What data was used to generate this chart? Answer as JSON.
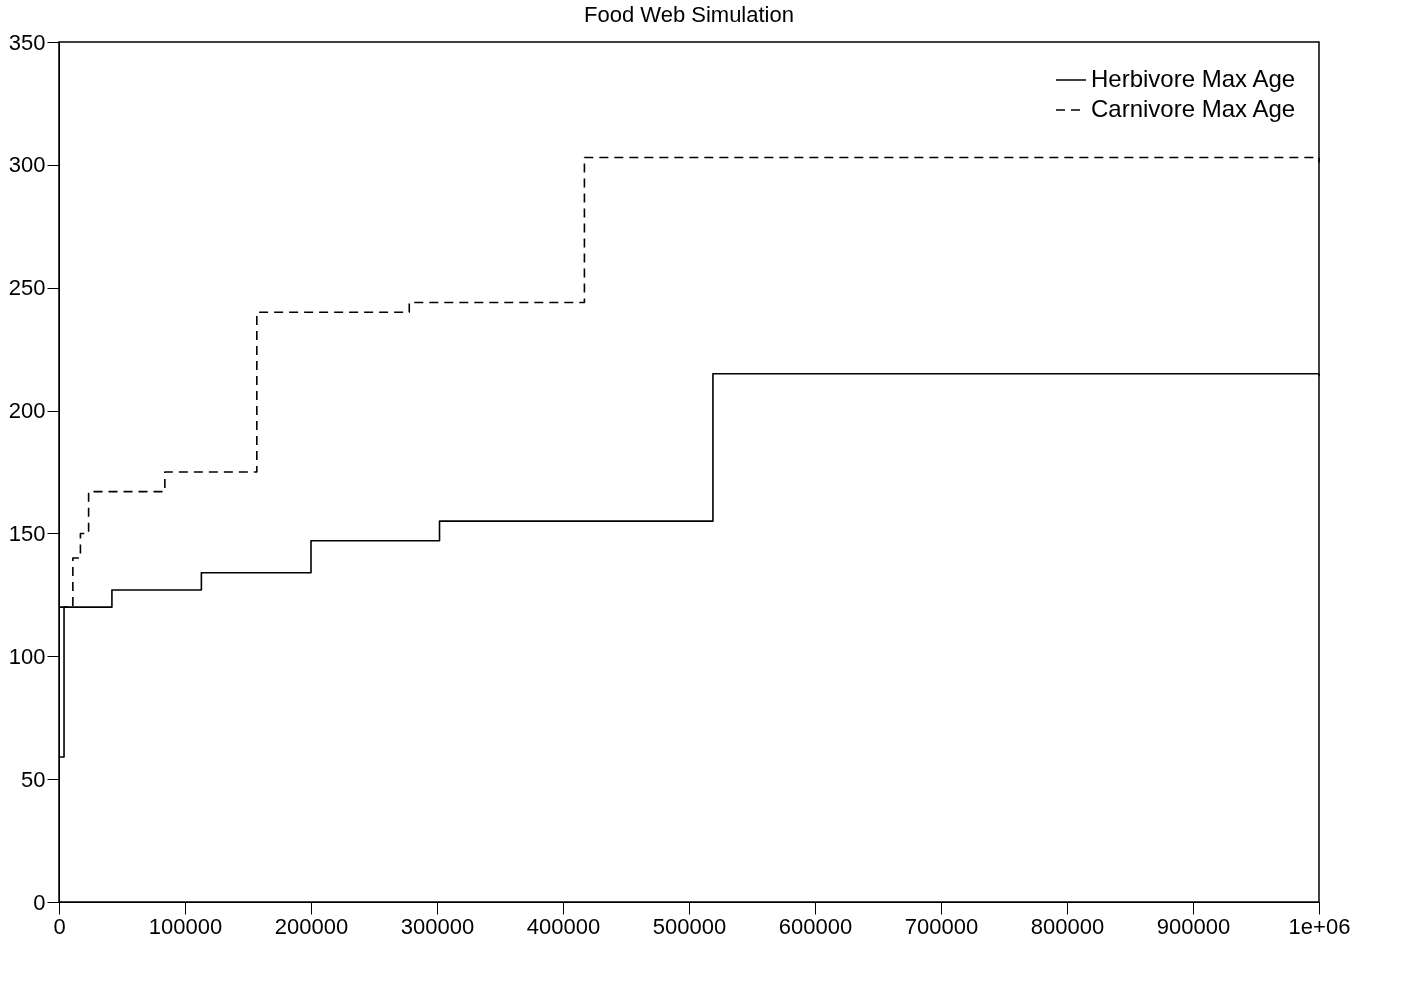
{
  "chart_data": {
    "type": "step",
    "title": "Food Web Simulation",
    "series": [
      {
        "name": "Herbivore Max Age",
        "color": "#000000",
        "line_style": "solid",
        "x": [
          0,
          4000,
          42000,
          113000,
          200000,
          302000,
          519000,
          1000000
        ],
        "values": [
          59,
          120,
          127,
          134,
          147,
          155,
          215,
          214
        ]
      },
      {
        "name": "Carnivore Max Age",
        "color": "#000000",
        "line_style": "dashed",
        "x": [
          0,
          11000,
          17000,
          23500,
          84000,
          157000,
          278000,
          417000,
          1000000
        ],
        "values": [
          120,
          140,
          150,
          167,
          175,
          240,
          244,
          303,
          301
        ]
      }
    ],
    "xlim": [
      0,
      1000000
    ],
    "xticks": [
      0,
      100000,
      200000,
      300000,
      400000,
      500000,
      600000,
      700000,
      800000,
      900000,
      {
        "value": 1000000,
        "label": "1e+06"
      }
    ],
    "ylim": [
      0,
      350
    ],
    "yticks": [
      0,
      50,
      100,
      150,
      200,
      250,
      300,
      350
    ],
    "grid": false,
    "legend": "top right"
  }
}
